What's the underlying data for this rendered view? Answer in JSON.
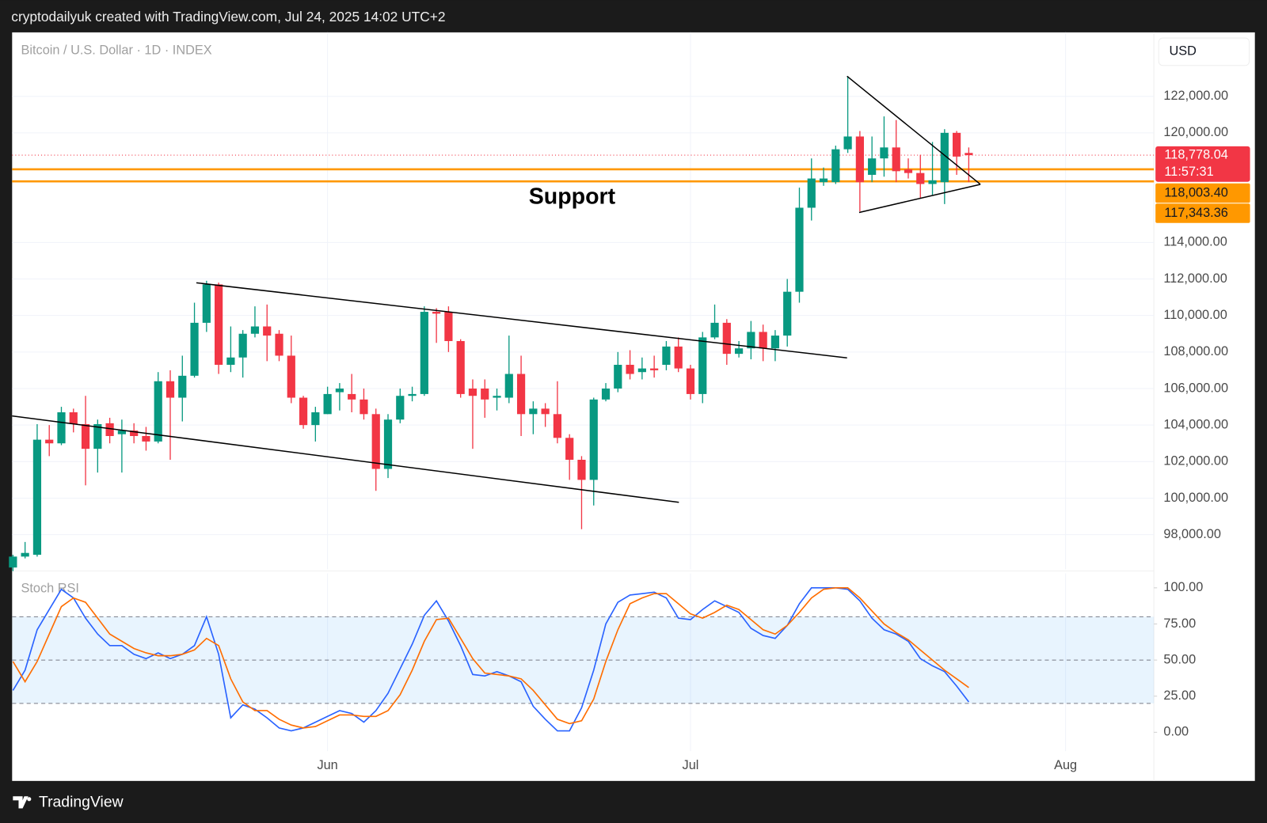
{
  "header": {
    "text": "cryptodailyuk created with TradingView.com, Jul 24, 2025 14:02 UTC+2"
  },
  "currency": "USD",
  "brand": "TradingView",
  "chart_data": [
    {
      "type": "candlestick",
      "title": "Bitcoin / U.S. Dollar · 1D · INDEX",
      "x": [
        0,
        1,
        2,
        3,
        4,
        5,
        6,
        7,
        8,
        9,
        10,
        11,
        12,
        13,
        14,
        15,
        16,
        17,
        18,
        19,
        20,
        21,
        22,
        23,
        24,
        25,
        26,
        27,
        28,
        29,
        30,
        31,
        32,
        33,
        34,
        35,
        36,
        37,
        38,
        39,
        40,
        41,
        42,
        43,
        44,
        45,
        46,
        47,
        48,
        49,
        50,
        51,
        52,
        53,
        54,
        55,
        56,
        57,
        58,
        59,
        60,
        61,
        62,
        63,
        64,
        65,
        66,
        67,
        68,
        69,
        70,
        71,
        72,
        73,
        74,
        75,
        76,
        77,
        78,
        79
      ],
      "xlim": [
        -0.07,
        94.3
      ],
      "xticks": [
        {
          "value": 26,
          "label": "Jun"
        },
        {
          "value": 56,
          "label": "Jul"
        },
        {
          "value": 87,
          "label": "Aug"
        }
      ],
      "ylim": [
        96100,
        125500
      ],
      "yticks": [
        {
          "value": 98000,
          "label": "98,000.00"
        },
        {
          "value": 100000,
          "label": "100,000.00"
        },
        {
          "value": 102000,
          "label": "102,000.00"
        },
        {
          "value": 104000,
          "label": "104,000.00"
        },
        {
          "value": 106000,
          "label": "106,000.00"
        },
        {
          "value": 108000,
          "label": "108,000.00"
        },
        {
          "value": 110000,
          "label": "110,000.00"
        },
        {
          "value": 112000,
          "label": "112,000.00"
        },
        {
          "value": 114000,
          "label": "114,000.00"
        },
        {
          "value": 120000,
          "label": "120,000.00"
        },
        {
          "value": 122000,
          "label": "122,000.00"
        }
      ],
      "grid": true,
      "up_color": "#089981",
      "down_color": "#f23645",
      "open": [
        96200,
        96800,
        96900,
        103200,
        103000,
        104700,
        104050,
        102700,
        104100,
        103500,
        103700,
        103400,
        103100,
        106400,
        105500,
        106700,
        109600,
        111700,
        107300,
        107700,
        109000,
        109400,
        109000,
        107800,
        105500,
        104000,
        104600,
        105800,
        105700,
        105400,
        104600,
        101600,
        104300,
        105600,
        105700,
        110200,
        110200,
        108600,
        106000,
        106000,
        105500,
        105500,
        106800,
        104600,
        104900,
        104600,
        103300,
        102100,
        101000,
        105400,
        106000,
        107300,
        106900,
        107100,
        107300,
        108300,
        107100,
        105700,
        108800,
        109600,
        107900,
        108200,
        109100,
        108200,
        108900,
        111300,
        115900,
        117300,
        117300,
        119100,
        119800,
        117700,
        118600,
        119200,
        118000,
        117800,
        117200,
        117300,
        120000,
        118900
      ],
      "high": [
        96900,
        97600,
        104050,
        104000,
        105000,
        104900,
        105600,
        104300,
        104400,
        104300,
        104100,
        103900,
        106900,
        107000,
        107800,
        110700,
        111900,
        111800,
        109400,
        109200,
        110500,
        110600,
        109200,
        108900,
        105600,
        105000,
        106100,
        106300,
        106800,
        106000,
        104900,
        104600,
        106000,
        106100,
        110500,
        110400,
        110500,
        108700,
        106500,
        106500,
        106000,
        108900,
        107800,
        105300,
        105200,
        106400,
        103500,
        102300,
        105500,
        106300,
        108000,
        108100,
        107700,
        107800,
        108600,
        108800,
        107300,
        109100,
        110600,
        109800,
        108600,
        109700,
        109500,
        109200,
        112000,
        117000,
        118600,
        118100,
        119300,
        123100,
        120100,
        119800,
        120900,
        120700,
        118600,
        118800,
        119500,
        120200,
        120100,
        119200
      ],
      "low": [
        96000,
        96700,
        96800,
        102300,
        102900,
        103600,
        100700,
        101400,
        103000,
        101400,
        103000,
        102600,
        103000,
        102100,
        104200,
        106600,
        109100,
        106800,
        106900,
        106600,
        108800,
        107500,
        107500,
        105200,
        103800,
        103100,
        104600,
        104800,
        104700,
        104300,
        100400,
        101100,
        104100,
        105300,
        105600,
        108500,
        108000,
        105500,
        102700,
        104400,
        104800,
        105200,
        103400,
        103500,
        103900,
        103000,
        101000,
        98300,
        99600,
        105300,
        105800,
        106500,
        106500,
        106600,
        107000,
        106900,
        105400,
        105200,
        108700,
        107300,
        107700,
        107600,
        107500,
        107500,
        108300,
        110700,
        115200,
        117100,
        117200,
        118900,
        115700,
        117300,
        117600,
        117300,
        117500,
        116400,
        116600,
        116100,
        117700,
        117300
      ],
      "close": [
        96800,
        97000,
        103200,
        103000,
        104700,
        104050,
        102700,
        104050,
        103400,
        103700,
        103400,
        103100,
        106400,
        105500,
        106700,
        109600,
        111700,
        107300,
        107700,
        109000,
        109400,
        108900,
        107800,
        105500,
        104000,
        104700,
        105700,
        106000,
        105400,
        104600,
        101600,
        104300,
        105600,
        105700,
        110200,
        110100,
        108600,
        105700,
        105600,
        105400,
        105600,
        106800,
        104600,
        104900,
        104600,
        103300,
        102100,
        101000,
        105400,
        106000,
        107300,
        106800,
        107100,
        107000,
        108300,
        107100,
        105700,
        108800,
        109600,
        107900,
        108200,
        109100,
        108200,
        108900,
        111300,
        115900,
        117500,
        117500,
        119100,
        119800,
        117300,
        118600,
        119200,
        117900,
        117800,
        117200,
        117400,
        120000,
        118700,
        118778.04
      ],
      "last_price": {
        "value": 118778.04,
        "label": "118,778.04",
        "countdown": "11:57:31",
        "color": "#f23645"
      },
      "price_lines": [
        {
          "value": 118003.4,
          "label": "118,003.40",
          "color": "#ff9800"
        },
        {
          "value": 117343.36,
          "label": "117,343.36",
          "color": "#ff9800"
        }
      ],
      "trendlines": [
        {
          "x": [
            15.16,
            68.94
          ],
          "y": [
            111790,
            107680
          ]
        },
        {
          "x": [
            -0.07,
            55.04
          ],
          "y": [
            104500,
            99770
          ]
        },
        {
          "x": [
            68.94,
            79.96
          ],
          "y": [
            123100,
            117180
          ]
        },
        {
          "x": [
            69.94,
            79.96
          ],
          "y": [
            115640,
            117180
          ]
        }
      ],
      "annotations": [
        {
          "text": "Support"
        }
      ]
    },
    {
      "type": "line",
      "title": "Stoch RSI",
      "ylim": [
        -13,
        110
      ],
      "yticks": [
        {
          "value": 0,
          "label": "0.00"
        },
        {
          "value": 25,
          "label": "25.00"
        },
        {
          "value": 50,
          "label": "50.00"
        },
        {
          "value": 75,
          "label": "75.00"
        },
        {
          "value": 100,
          "label": "100.00"
        }
      ],
      "bands": [
        20,
        50,
        80
      ],
      "band_fill": "rgba(33,150,243,0.1)",
      "series": [
        {
          "color": "#2962ff",
          "values": [
            29,
            43,
            71,
            85,
            99,
            93,
            79,
            68,
            60,
            60,
            54,
            51,
            55,
            51,
            54,
            60,
            80,
            54,
            10,
            19,
            16,
            10,
            3,
            1,
            3,
            7,
            11,
            15,
            13,
            7,
            15,
            27,
            44,
            61,
            81,
            91,
            77,
            60,
            40,
            39,
            42,
            39,
            35,
            18,
            9,
            1,
            1,
            17,
            43,
            75,
            90,
            95,
            96,
            97,
            93,
            79,
            78,
            85,
            91,
            87,
            83,
            72,
            67,
            65,
            74,
            89,
            100,
            100,
            100,
            99,
            91,
            79,
            71,
            68,
            63,
            51,
            46,
            42,
            32,
            21
          ]
        },
        {
          "color": "#ff6d00",
          "values": [
            49,
            35,
            49,
            68,
            87,
            93,
            90,
            79,
            68,
            63,
            58,
            55,
            53,
            53,
            54,
            57,
            65,
            60,
            37,
            21,
            15,
            15,
            9,
            5,
            3,
            4,
            8,
            12,
            12,
            11,
            11,
            15,
            26,
            43,
            63,
            78,
            79,
            65,
            51,
            41,
            40,
            39,
            37,
            29,
            19,
            9,
            6,
            8,
            23,
            49,
            71,
            89,
            93,
            96,
            96,
            89,
            82,
            79,
            83,
            88,
            85,
            78,
            71,
            68,
            74,
            83,
            93,
            99,
            100,
            100,
            93,
            84,
            75,
            69,
            64,
            57,
            50,
            43,
            37,
            31
          ]
        }
      ]
    }
  ]
}
